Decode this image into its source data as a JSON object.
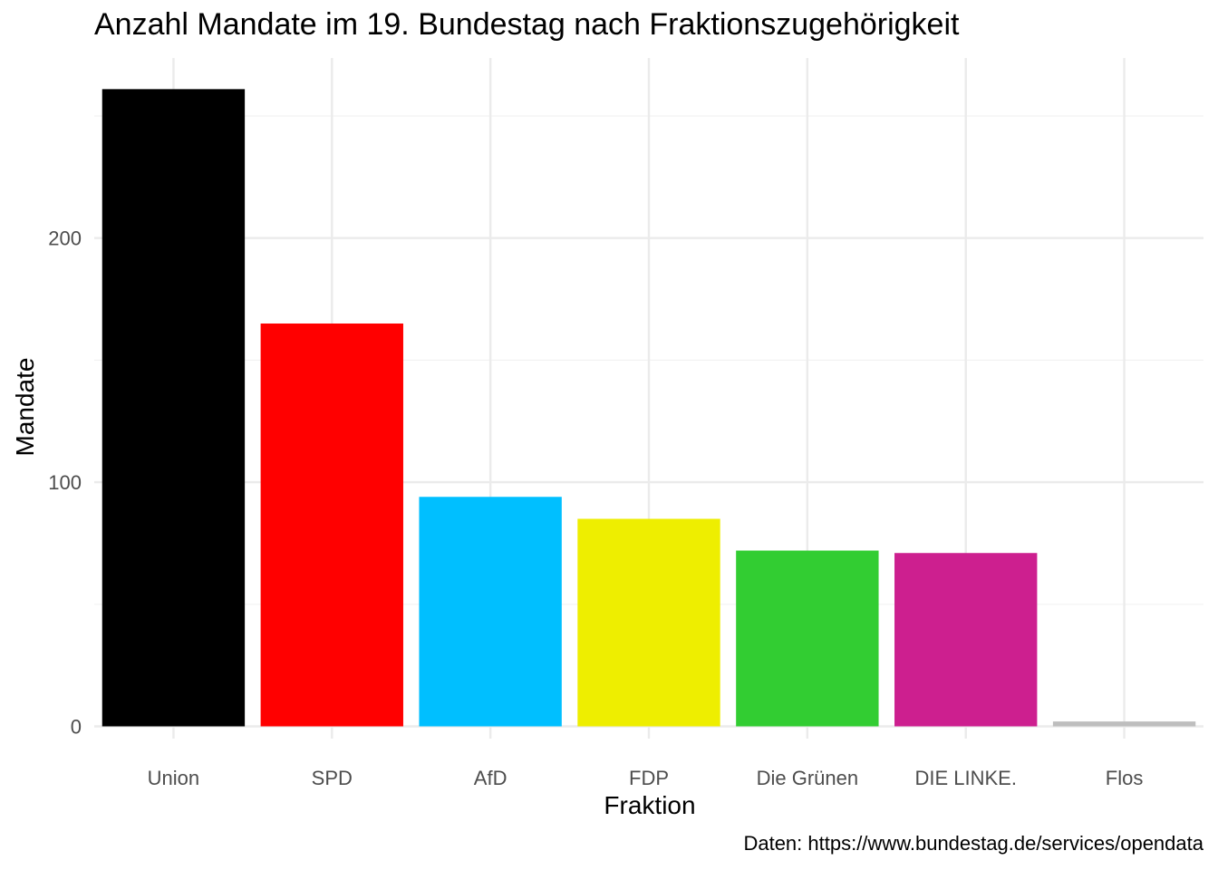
{
  "chart_data": {
    "type": "bar",
    "title": "Anzahl Mandate im 19. Bundestag nach Fraktionszugehörigkeit",
    "xlabel": "Fraktion",
    "ylabel": "Mandate",
    "caption": "Daten: https://www.bundestag.de/services/opendata",
    "categories": [
      "Union",
      "SPD",
      "AfD",
      "FDP",
      "Die Grünen",
      "DIE LINKE.",
      "Flos"
    ],
    "values": [
      261,
      165,
      94,
      85,
      72,
      71,
      2
    ],
    "colors": [
      "#000000",
      "#ff0000",
      "#00bfff",
      "#eeee00",
      "#32cd32",
      "#cd1f8f",
      "#bebebe"
    ],
    "y_ticks": [
      0,
      100,
      200
    ],
    "ylim": [
      -5,
      274
    ],
    "grid": true,
    "legend": "none"
  }
}
